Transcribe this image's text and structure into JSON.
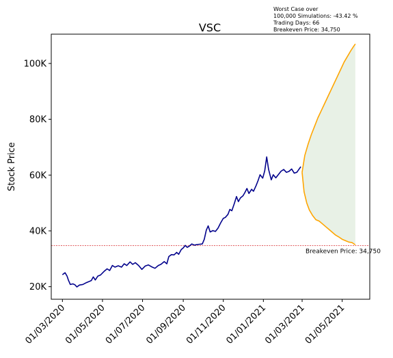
{
  "chart_data": {
    "type": "line",
    "title": "VSC",
    "xlabel": "",
    "ylabel": "Stock Price",
    "x_range": [
      "2020-02-13",
      "2021-06-12"
    ],
    "ylim": [
      15500,
      110500
    ],
    "y_ticks": [
      20000,
      40000,
      60000,
      80000,
      100000
    ],
    "y_tick_labels": [
      "20K",
      "40K",
      "60K",
      "80K",
      "100K"
    ],
    "x_ticks": [
      "2020-03-01",
      "2020-05-01",
      "2020-07-01",
      "2020-09-01",
      "2020-11-01",
      "2021-01-01",
      "2021-03-01",
      "2021-05-01"
    ],
    "x_tick_labels": [
      "01/03/2020",
      "01/05/2020",
      "01/07/2020",
      "01/09/2020",
      "01/11/2020",
      "01/01/2021",
      "01/03/2021",
      "01/05/2021"
    ],
    "grid": false,
    "legend": "none",
    "colors": {
      "history": "#00008b",
      "projection": "#ffa500",
      "band": "#e5f0e3",
      "breakeven": "#d62728"
    },
    "annotation": [
      "Worst Case over",
      "100,000 Simulations: -43.42 %",
      "Trading Days: 66",
      "Breakeven Price: 34,750"
    ],
    "breakeven": {
      "value": 34750,
      "label": "Breakeven Price: 34,750"
    },
    "history": [
      [
        "2020-03-01",
        24300
      ],
      [
        "2020-03-05",
        25000
      ],
      [
        "2020-03-08",
        23800
      ],
      [
        "2020-03-10",
        22400
      ],
      [
        "2020-03-13",
        20800
      ],
      [
        "2020-03-17",
        21000
      ],
      [
        "2020-03-20",
        20700
      ],
      [
        "2020-03-23",
        19900
      ],
      [
        "2020-03-27",
        20600
      ],
      [
        "2020-04-01",
        20800
      ],
      [
        "2020-04-06",
        21400
      ],
      [
        "2020-04-10",
        21800
      ],
      [
        "2020-04-14",
        22200
      ],
      [
        "2020-04-17",
        23500
      ],
      [
        "2020-04-20",
        22400
      ],
      [
        "2020-04-24",
        23800
      ],
      [
        "2020-04-28",
        24200
      ],
      [
        "2020-05-04",
        25600
      ],
      [
        "2020-05-08",
        26400
      ],
      [
        "2020-05-12",
        25800
      ],
      [
        "2020-05-16",
        27600
      ],
      [
        "2020-05-20",
        27000
      ],
      [
        "2020-05-25",
        27500
      ],
      [
        "2020-05-30",
        27000
      ],
      [
        "2020-06-03",
        28200
      ],
      [
        "2020-06-07",
        27600
      ],
      [
        "2020-06-12",
        28900
      ],
      [
        "2020-06-16",
        28000
      ],
      [
        "2020-06-20",
        28600
      ],
      [
        "2020-06-25",
        27600
      ],
      [
        "2020-06-30",
        26200
      ],
      [
        "2020-07-05",
        27400
      ],
      [
        "2020-07-10",
        27800
      ],
      [
        "2020-07-15",
        27100
      ],
      [
        "2020-07-20",
        26600
      ],
      [
        "2020-07-25",
        27600
      ],
      [
        "2020-07-29",
        28000
      ],
      [
        "2020-08-03",
        29000
      ],
      [
        "2020-08-07",
        28200
      ],
      [
        "2020-08-10",
        30800
      ],
      [
        "2020-08-14",
        31500
      ],
      [
        "2020-08-18",
        31400
      ],
      [
        "2020-08-22",
        32300
      ],
      [
        "2020-08-25",
        31600
      ],
      [
        "2020-08-29",
        33300
      ],
      [
        "2020-09-01",
        33900
      ],
      [
        "2020-09-04",
        34800
      ],
      [
        "2020-09-07",
        34100
      ],
      [
        "2020-09-10",
        34500
      ],
      [
        "2020-09-14",
        35300
      ],
      [
        "2020-09-18",
        34900
      ],
      [
        "2020-09-22",
        35100
      ],
      [
        "2020-09-26",
        35200
      ],
      [
        "2020-09-30",
        35300
      ],
      [
        "2020-10-03",
        37000
      ],
      [
        "2020-10-06",
        40200
      ],
      [
        "2020-10-09",
        41800
      ],
      [
        "2020-10-12",
        39600
      ],
      [
        "2020-10-16",
        40100
      ],
      [
        "2020-10-20",
        39800
      ],
      [
        "2020-10-24",
        41000
      ],
      [
        "2020-10-28",
        42900
      ],
      [
        "2020-11-01",
        44500
      ],
      [
        "2020-11-04",
        44800
      ],
      [
        "2020-11-08",
        45900
      ],
      [
        "2020-11-11",
        47700
      ],
      [
        "2020-11-14",
        47200
      ],
      [
        "2020-11-18",
        50000
      ],
      [
        "2020-11-21",
        52300
      ],
      [
        "2020-11-24",
        50500
      ],
      [
        "2020-11-27",
        51800
      ],
      [
        "2020-12-01",
        52600
      ],
      [
        "2020-12-04",
        53800
      ],
      [
        "2020-12-07",
        55200
      ],
      [
        "2020-12-10",
        53400
      ],
      [
        "2020-12-14",
        54900
      ],
      [
        "2020-12-17",
        54200
      ],
      [
        "2020-12-21",
        56300
      ],
      [
        "2020-12-24",
        58100
      ],
      [
        "2020-12-27",
        60100
      ],
      [
        "2020-12-31",
        58900
      ],
      [
        "2021-01-03",
        61500
      ],
      [
        "2021-01-06",
        66500
      ],
      [
        "2021-01-09",
        62000
      ],
      [
        "2021-01-13",
        58300
      ],
      [
        "2021-01-16",
        60100
      ],
      [
        "2021-01-20",
        59000
      ],
      [
        "2021-01-24",
        60200
      ],
      [
        "2021-01-28",
        61400
      ],
      [
        "2021-02-01",
        62000
      ],
      [
        "2021-02-05",
        61000
      ],
      [
        "2021-02-09",
        61300
      ],
      [
        "2021-02-13",
        62200
      ],
      [
        "2021-02-17",
        60700
      ],
      [
        "2021-02-21",
        61000
      ],
      [
        "2021-02-24",
        62000
      ],
      [
        "2021-02-27",
        63000
      ]
    ],
    "projection_upper": [
      [
        "2021-03-01",
        61000
      ],
      [
        "2021-03-05",
        67000
      ],
      [
        "2021-03-10",
        71000
      ],
      [
        "2021-03-15",
        74500
      ],
      [
        "2021-03-20",
        77500
      ],
      [
        "2021-03-25",
        80500
      ],
      [
        "2021-03-30",
        83000
      ],
      [
        "2021-04-04",
        85500
      ],
      [
        "2021-04-09",
        88000
      ],
      [
        "2021-04-14",
        90500
      ],
      [
        "2021-04-19",
        93000
      ],
      [
        "2021-04-24",
        95500
      ],
      [
        "2021-04-29",
        98000
      ],
      [
        "2021-05-04",
        100500
      ],
      [
        "2021-05-09",
        102500
      ],
      [
        "2021-05-14",
        104500
      ],
      [
        "2021-05-18",
        106000
      ],
      [
        "2021-05-21",
        107000
      ]
    ],
    "projection_lower": [
      [
        "2021-03-01",
        61000
      ],
      [
        "2021-03-04",
        54000
      ],
      [
        "2021-03-08",
        50000
      ],
      [
        "2021-03-12",
        47500
      ],
      [
        "2021-03-17",
        45500
      ],
      [
        "2021-03-22",
        44000
      ],
      [
        "2021-03-27",
        43500
      ],
      [
        "2021-04-01",
        42500
      ],
      [
        "2021-04-06",
        41500
      ],
      [
        "2021-04-11",
        40500
      ],
      [
        "2021-04-16",
        39500
      ],
      [
        "2021-04-21",
        38500
      ],
      [
        "2021-04-26",
        37800
      ],
      [
        "2021-05-01",
        37000
      ],
      [
        "2021-05-06",
        36500
      ],
      [
        "2021-05-11",
        36000
      ],
      [
        "2021-05-16",
        35800
      ],
      [
        "2021-05-21",
        35000
      ]
    ]
  }
}
